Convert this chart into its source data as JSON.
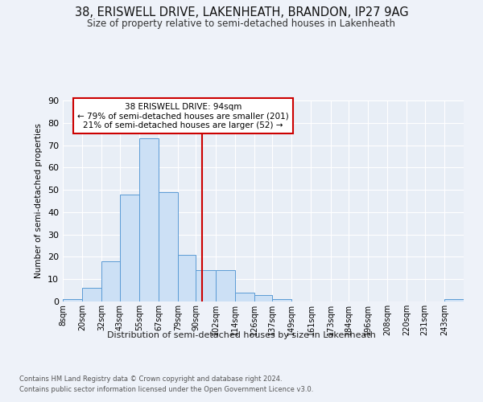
{
  "title_line1": "38, ERISWELL DRIVE, LAKENHEATH, BRANDON, IP27 9AG",
  "title_line2": "Size of property relative to semi-detached houses in Lakenheath",
  "xlabel": "Distribution of semi-detached houses by size in Lakenheath",
  "ylabel": "Number of semi-detached properties",
  "footer_line1": "Contains HM Land Registry data © Crown copyright and database right 2024.",
  "footer_line2": "Contains public sector information licensed under the Open Government Licence v3.0.",
  "bin_labels": [
    "8sqm",
    "20sqm",
    "32sqm",
    "43sqm",
    "55sqm",
    "67sqm",
    "79sqm",
    "90sqm",
    "102sqm",
    "114sqm",
    "126sqm",
    "137sqm",
    "149sqm",
    "161sqm",
    "173sqm",
    "184sqm",
    "196sqm",
    "208sqm",
    "220sqm",
    "231sqm",
    "243sqm"
  ],
  "bin_edges": [
    8,
    20,
    32,
    43,
    55,
    67,
    79,
    90,
    102,
    114,
    126,
    137,
    149,
    161,
    173,
    184,
    196,
    208,
    220,
    231,
    243,
    255
  ],
  "bar_heights": [
    1,
    6,
    18,
    48,
    73,
    49,
    21,
    14,
    14,
    4,
    3,
    1,
    0,
    0,
    0,
    0,
    0,
    0,
    0,
    0,
    1
  ],
  "bar_fill_color": "#cce0f5",
  "bar_edge_color": "#5b9bd5",
  "property_size": 94,
  "vline_color": "#cc0000",
  "annotation_text_line1": "38 ERISWELL DRIVE: 94sqm",
  "annotation_text_line2": "← 79% of semi-detached houses are smaller (201)",
  "annotation_text_line3": "21% of semi-detached houses are larger (52) →",
  "annotation_box_edge_color": "#cc0000",
  "annotation_box_fill": "#ffffff",
  "background_color": "#eef2f9",
  "plot_bg_color": "#e8eef6",
  "grid_color": "#ffffff",
  "ylim": [
    0,
    90
  ],
  "yticks": [
    0,
    10,
    20,
    30,
    40,
    50,
    60,
    70,
    80,
    90
  ]
}
